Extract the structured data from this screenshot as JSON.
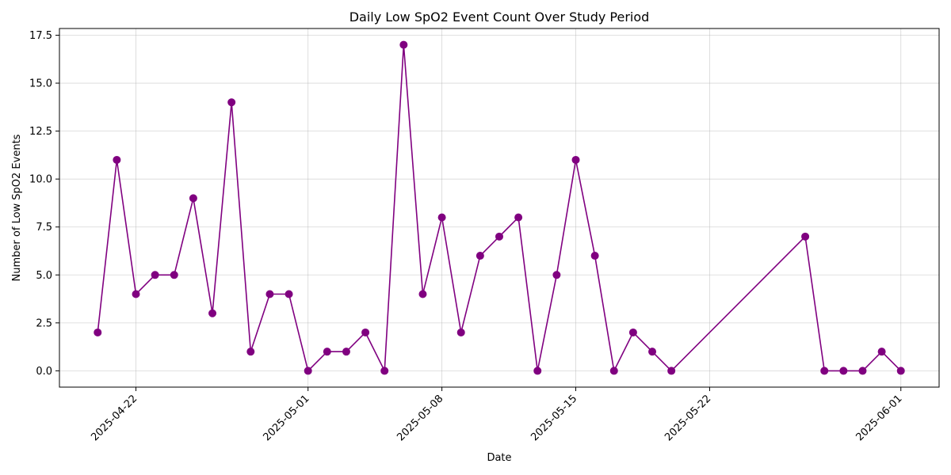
{
  "chart_data": {
    "type": "line",
    "title": "Daily Low SpO2 Event Count Over Study Period",
    "xlabel": "Date",
    "ylabel": "Number of Low SpO2 Events",
    "x_axis_type": "date",
    "xlim": [
      "2025-04-18",
      "2025-06-03"
    ],
    "ylim": [
      -0.85,
      17.85
    ],
    "x_ticks": [
      "2025-04-22",
      "2025-05-01",
      "2025-05-08",
      "2025-05-15",
      "2025-05-22",
      "2025-06-01"
    ],
    "y_ticks": [
      "0.0",
      "2.5",
      "5.0",
      "7.5",
      "10.0",
      "12.5",
      "15.0",
      "17.5"
    ],
    "grid": true,
    "legend": "none",
    "colors": {
      "series": "#800080"
    },
    "series": [
      {
        "marker": "circle",
        "x": [
          "2025-04-20",
          "2025-04-21",
          "2025-04-22",
          "2025-04-23",
          "2025-04-24",
          "2025-04-25",
          "2025-04-26",
          "2025-04-27",
          "2025-04-28",
          "2025-04-29",
          "2025-04-30",
          "2025-05-01",
          "2025-05-02",
          "2025-05-03",
          "2025-05-04",
          "2025-05-05",
          "2025-05-06",
          "2025-05-07",
          "2025-05-08",
          "2025-05-09",
          "2025-05-10",
          "2025-05-11",
          "2025-05-12",
          "2025-05-13",
          "2025-05-14",
          "2025-05-15",
          "2025-05-16",
          "2025-05-17",
          "2025-05-18",
          "2025-05-19",
          "2025-05-20",
          "2025-05-27",
          "2025-05-28",
          "2025-05-29",
          "2025-05-30",
          "2025-05-31",
          "2025-06-01"
        ],
        "values": [
          2,
          11,
          4,
          5,
          5,
          9,
          3,
          14,
          1,
          4,
          4,
          0,
          1,
          1,
          2,
          0,
          17,
          4,
          8,
          2,
          6,
          7,
          8,
          0,
          5,
          11,
          6,
          0,
          2,
          1,
          0,
          7,
          0,
          0,
          0,
          1,
          0
        ]
      }
    ]
  }
}
